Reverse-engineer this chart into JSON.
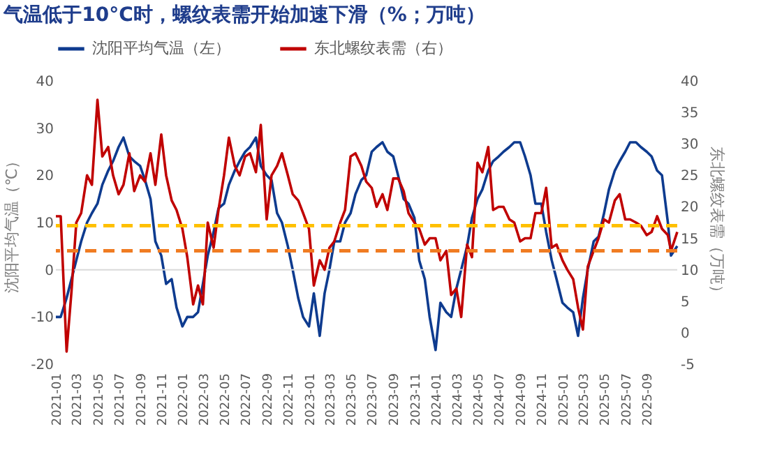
{
  "chart_data": {
    "type": "line",
    "title": "气温低于10°C时，螺纹表需开始加速下滑（%；万吨）",
    "ylabel": "沈阳平均气温（℃）",
    "y2label": "东北螺纹表需（万吨）",
    "x": [
      "2021-01-01",
      "2021-01-15",
      "2021-02-01",
      "2021-02-15",
      "2021-03-01",
      "2021-03-15",
      "2021-04-01",
      "2021-04-15",
      "2021-05-01",
      "2021-05-15",
      "2021-06-01",
      "2021-06-15",
      "2021-07-01",
      "2021-07-15",
      "2021-08-01",
      "2021-08-15",
      "2021-09-01",
      "2021-09-15",
      "2021-10-01",
      "2021-10-15",
      "2021-11-01",
      "2021-11-15",
      "2021-12-01",
      "2021-12-15",
      "2022-01-01",
      "2022-01-15",
      "2022-02-01",
      "2022-02-15",
      "2022-03-01",
      "2022-03-15",
      "2022-04-01",
      "2022-04-15",
      "2022-05-01",
      "2022-05-15",
      "2022-06-01",
      "2022-06-15",
      "2022-07-01",
      "2022-07-15",
      "2022-08-01",
      "2022-08-15",
      "2022-09-01",
      "2022-09-15",
      "2022-10-01",
      "2022-10-15",
      "2022-11-01",
      "2022-11-15",
      "2022-12-01",
      "2022-12-15",
      "2023-01-01",
      "2023-01-15",
      "2023-02-01",
      "2023-02-15",
      "2023-03-01",
      "2023-03-15",
      "2023-04-01",
      "2023-04-15",
      "2023-05-01",
      "2023-05-15",
      "2023-06-01",
      "2023-06-15",
      "2023-07-01",
      "2023-07-15",
      "2023-08-01",
      "2023-08-15",
      "2023-09-01",
      "2023-09-15",
      "2023-10-01",
      "2023-10-15",
      "2023-11-01",
      "2023-11-15",
      "2023-12-01",
      "2023-12-15",
      "2024-01-01",
      "2024-01-15",
      "2024-02-01",
      "2024-02-15",
      "2024-03-01",
      "2024-03-15",
      "2024-04-01",
      "2024-04-15",
      "2024-05-01",
      "2024-05-15",
      "2024-06-01",
      "2024-06-15",
      "2024-07-01",
      "2024-07-15",
      "2024-08-01",
      "2024-08-15",
      "2024-09-01",
      "2024-09-15",
      "2024-10-01",
      "2024-10-15",
      "2024-11-01",
      "2024-11-15",
      "2024-12-01",
      "2024-12-15",
      "2025-01-01",
      "2025-01-15",
      "2025-02-01",
      "2025-02-15",
      "2025-03-01",
      "2025-03-15",
      "2025-04-01",
      "2025-04-15",
      "2025-05-01",
      "2025-05-15",
      "2025-06-01",
      "2025-06-15",
      "2025-07-01",
      "2025-07-15",
      "2025-08-01",
      "2025-08-15",
      "2025-09-01",
      "2025-09-15",
      "2025-10-01",
      "2025-10-15",
      "2025-11-01",
      "2025-11-10",
      "2025-11-19",
      "2025-11-28"
    ],
    "series": [
      {
        "name": "沈阳平均气温（左）",
        "color": "#0e3b8f",
        "values": [
          -10,
          -10,
          -6,
          -2,
          2,
          6,
          10,
          12,
          14,
          18,
          21,
          23,
          26,
          28,
          24,
          23,
          22,
          19,
          15,
          6,
          3,
          -3,
          -2,
          -8,
          -12,
          -10,
          -10,
          -9,
          -3,
          3,
          8,
          13,
          14,
          18,
          21,
          23,
          25,
          26,
          28,
          22,
          20,
          19,
          12,
          10,
          5,
          0,
          -6,
          -10,
          -12,
          -5,
          -14,
          -5,
          0,
          6,
          6,
          10,
          12,
          16,
          19,
          20,
          25,
          26,
          27,
          25,
          24,
          20,
          15,
          14,
          11,
          2,
          -2,
          -10,
          -17,
          -7,
          -9,
          -10,
          -4,
          0,
          5,
          11,
          15,
          17,
          21,
          23,
          24,
          25,
          26,
          27,
          27,
          24,
          20,
          14,
          14,
          8,
          2,
          -2,
          -7,
          -8,
          -9,
          -14,
          -6,
          0,
          6,
          7,
          12,
          17,
          21,
          23,
          25,
          27,
          27,
          26,
          25,
          24,
          21,
          20,
          10,
          3,
          4,
          5
        ]
      },
      {
        "name": "东北螺纹表需（右）",
        "axis": "y2",
        "color": "#c00000",
        "values": [
          18.5,
          18.5,
          -3,
          6.5,
          17.5,
          19,
          25,
          23.5,
          37,
          28,
          29.5,
          25,
          22,
          23.5,
          28.5,
          22.5,
          25,
          24,
          28.5,
          23.5,
          31.5,
          25,
          21,
          19.5,
          16.5,
          12,
          4.5,
          7.5,
          4.5,
          17.5,
          13.5,
          19.5,
          25,
          31,
          26.5,
          25,
          28,
          28.5,
          25.5,
          33,
          18,
          25,
          26.5,
          28.5,
          25,
          22,
          21,
          19,
          16.5,
          7.5,
          11.5,
          10,
          13.5,
          14.5,
          17.5,
          19.5,
          28,
          28.5,
          26.5,
          24,
          23,
          20,
          22,
          19.5,
          24.5,
          24.5,
          22.5,
          19,
          17.5,
          16.5,
          14,
          15,
          15,
          11.5,
          13,
          6,
          7,
          2.5,
          14,
          12,
          27,
          25.5,
          29.5,
          19.5,
          20,
          20,
          18,
          17.5,
          14.5,
          15,
          15,
          19,
          19,
          23,
          13.5,
          14,
          11.5,
          10,
          8.5,
          4,
          0.5,
          10.5,
          13,
          15,
          18,
          17.5,
          21,
          22,
          18,
          18,
          17.5,
          17,
          15.5,
          16,
          18.5,
          16.5,
          15.5,
          13,
          14.5,
          16
        ]
      }
    ],
    "xlim": [
      "2021-01-01",
      "2025-11-28"
    ],
    "xticks": [
      "2021-01",
      "2021-03",
      "2021-05",
      "2021-07",
      "2021-09",
      "2021-11",
      "2022-01",
      "2022-03",
      "2022-05",
      "2022-07",
      "2022-09",
      "2022-11",
      "2023-01",
      "2023-03",
      "2023-05",
      "2023-07",
      "2023-09",
      "2023-11",
      "2024-01",
      "2024-03",
      "2024-05",
      "2024-07",
      "2024-09",
      "2024-11",
      "2025-01",
      "2025-03",
      "2025-05",
      "2025-07",
      "2025-09"
    ],
    "ylim": [
      -20,
      40
    ],
    "yticks": [
      -20,
      -10,
      0,
      10,
      20,
      30,
      40
    ],
    "y2lim": [
      -5,
      40
    ],
    "y2ticks": [
      -5,
      0,
      5,
      10,
      15,
      20,
      25,
      30,
      35,
      40
    ],
    "ref_lines": [
      {
        "axis": "y",
        "value": 0,
        "color": "#d9d9d9",
        "line_style": "solid"
      },
      {
        "axis": "y2",
        "value": 17,
        "color": "#ffc000",
        "line_style": "dashed"
      },
      {
        "axis": "y2",
        "value": 13,
        "color": "#f07c22",
        "line_style": "dashed"
      }
    ],
    "legend": "top",
    "grid": false,
    "marker": "none",
    "line_style": "solid"
  }
}
